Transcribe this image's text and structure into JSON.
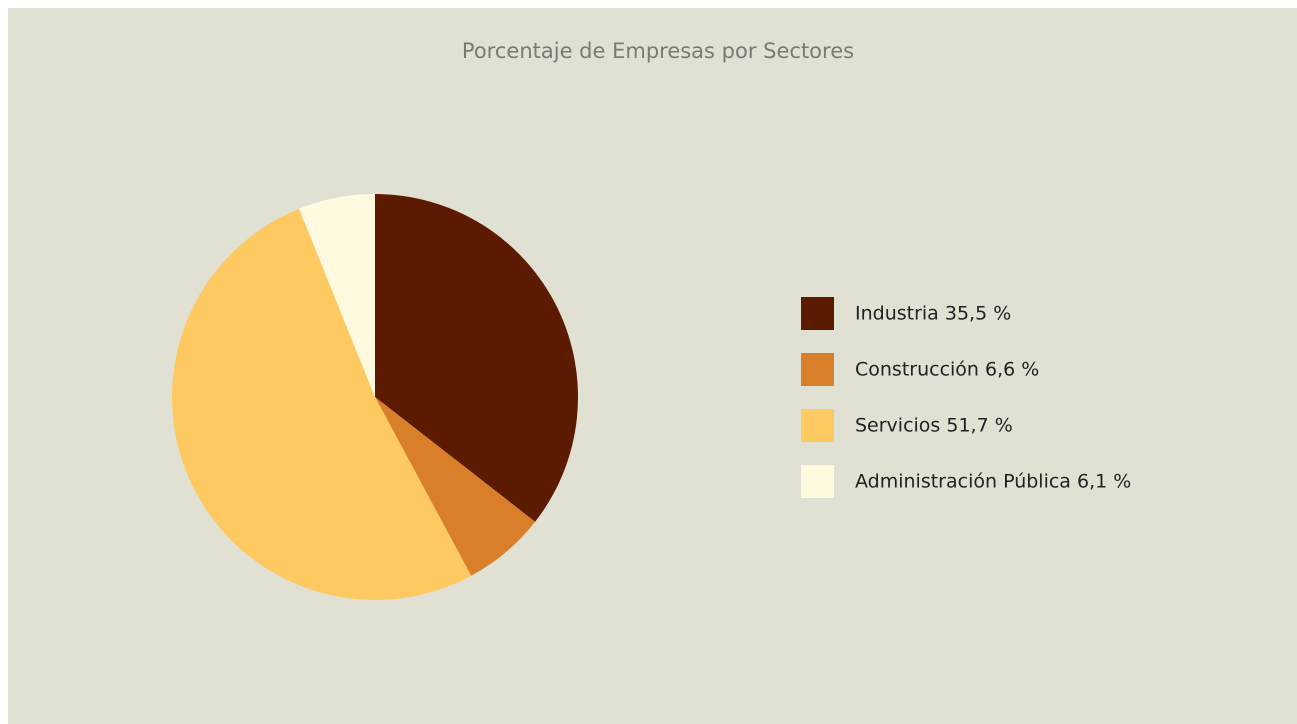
{
  "chart_data": {
    "type": "pie",
    "title": "Porcentaje de Empresas por Sectores",
    "categories": [
      "Industria 35,5 %",
      "Construcción  6,6 %",
      "Servicios  51,7 %",
      "Administración Pública  6,1 %"
    ],
    "values": [
      35.5,
      6.6,
      51.7,
      6.1
    ],
    "colors": [
      "#5c1a00",
      "#d97f2a",
      "#fec961",
      "#fffadf"
    ],
    "legend": "right"
  }
}
